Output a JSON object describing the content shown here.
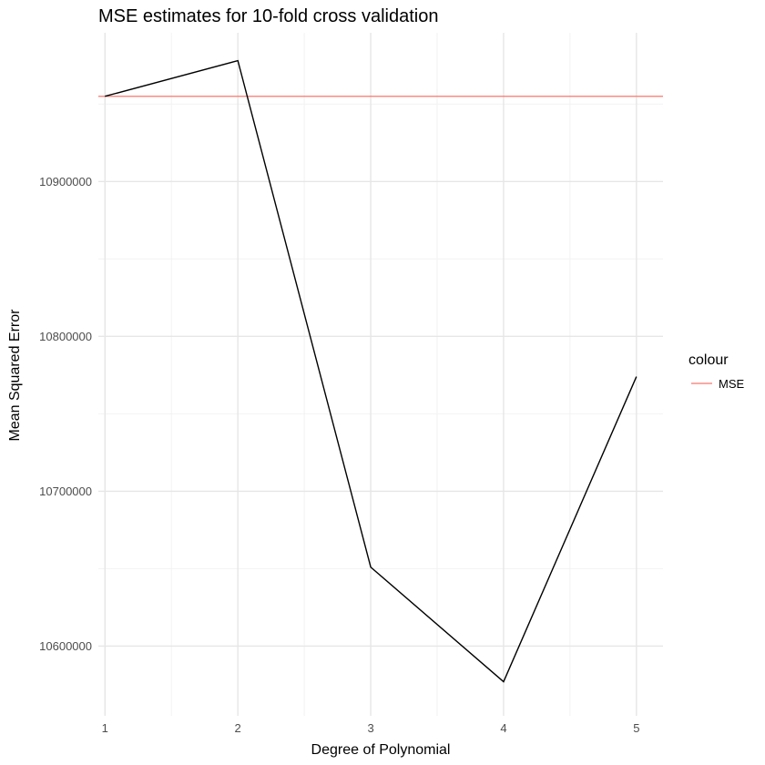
{
  "chart_data": {
    "type": "line",
    "title": "MSE estimates for 10-fold cross validation",
    "xlabel": "Degree of Polynomial",
    "ylabel": "Mean Squared Error",
    "x": [
      1,
      2,
      3,
      4,
      5
    ],
    "series": [
      {
        "values": [
          10955000,
          10978000,
          10651000,
          10577000,
          10774000
        ],
        "color": "#000000"
      }
    ],
    "reference_line": {
      "name": "MSE",
      "value": 10955000,
      "color": "#F8766D"
    },
    "xlim": [
      0.95,
      5.2
    ],
    "ylim": [
      10555000,
      10996000
    ],
    "x_ticks": [
      1,
      2,
      3,
      4,
      5
    ],
    "y_ticks": [
      10600000,
      10700000,
      10800000,
      10900000
    ],
    "y_minor_ticks": [
      10650000,
      10750000,
      10850000,
      10950000
    ],
    "x_minor_ticks": [
      1.5,
      2.5,
      3.5,
      4.5
    ],
    "grid": true,
    "legend": {
      "title": "colour",
      "placement": "right"
    }
  }
}
